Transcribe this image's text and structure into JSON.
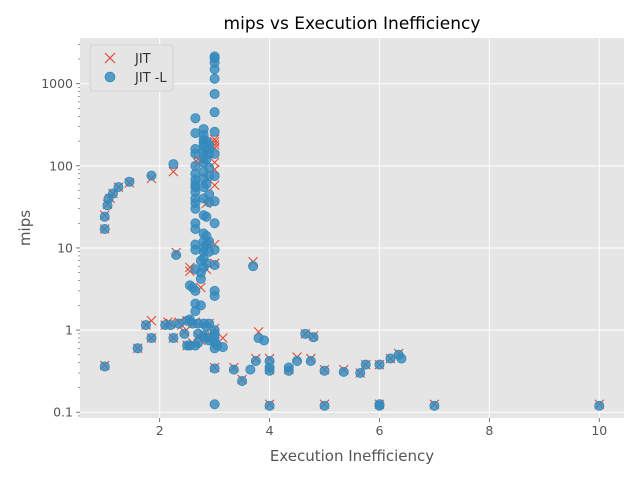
{
  "chart_data": {
    "type": "scatter",
    "title": "mips vs Execution Inefficiency",
    "xlabel": "Execution Inefficiency",
    "ylabel": "mips",
    "xscale": "linear",
    "yscale": "log",
    "xlim": [
      0.55,
      10.45
    ],
    "ylim": [
      0.085,
      3600
    ],
    "x_ticks": [
      2,
      4,
      6,
      8,
      10
    ],
    "x_tick_labels": [
      "2",
      "4",
      "6",
      "8",
      "10"
    ],
    "y_ticks": [
      0.1,
      1,
      10,
      100,
      1000
    ],
    "y_tick_labels": [
      "0.1",
      "1",
      "10",
      "100",
      "1000"
    ],
    "grid": true,
    "legend_position": "top-left",
    "series": [
      {
        "name": "JIT",
        "marker": "x",
        "color": "#E24A33",
        "points": [
          [
            1.0,
            0.37
          ],
          [
            1.0,
            17
          ],
          [
            1.0,
            25
          ],
          [
            1.05,
            34
          ],
          [
            1.1,
            40
          ],
          [
            1.15,
            46
          ],
          [
            1.25,
            55
          ],
          [
            1.45,
            62
          ],
          [
            1.85,
            70
          ],
          [
            1.6,
            0.6
          ],
          [
            1.75,
            1.15
          ],
          [
            1.85,
            1.3
          ],
          [
            1.85,
            0.8
          ],
          [
            2.1,
            1.15
          ],
          [
            2.15,
            1.25
          ],
          [
            2.2,
            1.2
          ],
          [
            2.25,
            0.8
          ],
          [
            2.25,
            85
          ],
          [
            2.3,
            8.8
          ],
          [
            2.35,
            1.25
          ],
          [
            2.4,
            1.15
          ],
          [
            2.45,
            0.95
          ],
          [
            2.5,
            1.3
          ],
          [
            2.5,
            0.65
          ],
          [
            2.55,
            5.2
          ],
          [
            2.55,
            5.8
          ],
          [
            2.6,
            1.2
          ],
          [
            2.6,
            0.7
          ],
          [
            2.65,
            1.25
          ],
          [
            2.7,
            108
          ],
          [
            2.7,
            120
          ],
          [
            2.7,
            0.85
          ],
          [
            2.75,
            0.75
          ],
          [
            2.75,
            3.3
          ],
          [
            2.8,
            1.2
          ],
          [
            2.8,
            0.9
          ],
          [
            2.85,
            5.5
          ],
          [
            2.85,
            140
          ],
          [
            2.85,
            35
          ],
          [
            2.85,
            12
          ],
          [
            2.9,
            1.2
          ],
          [
            2.9,
            0.8
          ],
          [
            2.95,
            0.85
          ],
          [
            3.0,
            210
          ],
          [
            3.0,
            195
          ],
          [
            3.0,
            180
          ],
          [
            3.0,
            165
          ],
          [
            3.0,
            58
          ],
          [
            3.0,
            90
          ],
          [
            3.0,
            110
          ],
          [
            3.0,
            11
          ],
          [
            3.0,
            6.5
          ],
          [
            3.0,
            1.05
          ],
          [
            3.0,
            0.35
          ],
          [
            3.15,
            0.8
          ],
          [
            3.35,
            0.35
          ],
          [
            3.5,
            0.25
          ],
          [
            3.7,
            6.8
          ],
          [
            3.75,
            0.45
          ],
          [
            3.8,
            0.95
          ],
          [
            4.0,
            0.45
          ],
          [
            4.0,
            0.33
          ],
          [
            4.0,
            0.125
          ],
          [
            4.35,
            0.33
          ],
          [
            4.5,
            0.47
          ],
          [
            4.65,
            0.9
          ],
          [
            4.75,
            0.45
          ],
          [
            4.8,
            0.85
          ],
          [
            5.0,
            0.33
          ],
          [
            5.0,
            0.125
          ],
          [
            5.35,
            0.33
          ],
          [
            5.65,
            0.3
          ],
          [
            5.75,
            0.38
          ],
          [
            6.0,
            0.38
          ],
          [
            6.0,
            0.125
          ],
          [
            6.2,
            0.45
          ],
          [
            6.35,
            0.52
          ],
          [
            7.0,
            0.125
          ],
          [
            10.0,
            0.125
          ]
        ]
      },
      {
        "name": "JIT -L",
        "marker": "o",
        "color": "#348ABD",
        "points": [
          [
            1.0,
            0.36
          ],
          [
            1.0,
            17
          ],
          [
            1.0,
            24
          ],
          [
            1.05,
            33
          ],
          [
            1.07,
            40
          ],
          [
            1.15,
            46
          ],
          [
            1.25,
            55
          ],
          [
            1.45,
            64
          ],
          [
            1.85,
            76
          ],
          [
            1.6,
            0.6
          ],
          [
            1.75,
            1.15
          ],
          [
            1.85,
            0.8
          ],
          [
            2.1,
            1.15
          ],
          [
            2.2,
            1.15
          ],
          [
            2.25,
            0.8
          ],
          [
            2.25,
            105
          ],
          [
            2.3,
            8.2
          ],
          [
            2.35,
            1.2
          ],
          [
            2.45,
            0.9
          ],
          [
            2.5,
            1.3
          ],
          [
            2.5,
            0.65
          ],
          [
            2.55,
            3.5
          ],
          [
            2.55,
            1.35
          ],
          [
            2.55,
            0.65
          ],
          [
            2.6,
            1.2
          ],
          [
            2.6,
            3.3
          ],
          [
            2.65,
            0.65
          ],
          [
            2.65,
            1.7
          ],
          [
            2.65,
            2.1
          ],
          [
            2.65,
            3.0
          ],
          [
            2.65,
            5.5
          ],
          [
            2.65,
            9.5
          ],
          [
            2.65,
            11
          ],
          [
            2.65,
            17
          ],
          [
            2.65,
            20
          ],
          [
            2.65,
            30
          ],
          [
            2.65,
            35
          ],
          [
            2.65,
            40
          ],
          [
            2.65,
            48
          ],
          [
            2.65,
            55
          ],
          [
            2.65,
            60
          ],
          [
            2.65,
            68
          ],
          [
            2.65,
            80
          ],
          [
            2.65,
            100
          ],
          [
            2.65,
            140
          ],
          [
            2.65,
            160
          ],
          [
            2.65,
            250
          ],
          [
            2.65,
            380
          ],
          [
            2.7,
            0.7
          ],
          [
            2.7,
            0.9
          ],
          [
            2.7,
            1.2
          ],
          [
            2.75,
            2.0
          ],
          [
            2.75,
            4.2
          ],
          [
            2.75,
            5.0
          ],
          [
            2.75,
            7.0
          ],
          [
            2.8,
            0.85
          ],
          [
            2.8,
            1.2
          ],
          [
            2.8,
            5.8
          ],
          [
            2.8,
            7.5
          ],
          [
            2.8,
            9
          ],
          [
            2.8,
            10
          ],
          [
            2.8,
            12
          ],
          [
            2.8,
            15
          ],
          [
            2.8,
            25
          ],
          [
            2.8,
            40
          ],
          [
            2.8,
            55
          ],
          [
            2.8,
            70
          ],
          [
            2.8,
            85
          ],
          [
            2.8,
            110
          ],
          [
            2.8,
            130
          ],
          [
            2.8,
            150
          ],
          [
            2.8,
            170
          ],
          [
            2.8,
            190
          ],
          [
            2.8,
            210
          ],
          [
            2.8,
            240
          ],
          [
            2.8,
            280
          ],
          [
            2.85,
            0.8
          ],
          [
            2.85,
            1.1
          ],
          [
            2.85,
            6.5
          ],
          [
            2.85,
            11
          ],
          [
            2.85,
            14
          ],
          [
            2.85,
            24
          ],
          [
            2.85,
            60
          ],
          [
            2.85,
            120
          ],
          [
            2.85,
            200
          ],
          [
            2.9,
            0.75
          ],
          [
            2.9,
            1.2
          ],
          [
            2.9,
            9
          ],
          [
            2.9,
            12
          ],
          [
            2.9,
            36
          ],
          [
            2.9,
            45
          ],
          [
            2.9,
            75
          ],
          [
            2.9,
            95
          ],
          [
            2.9,
            140
          ],
          [
            2.9,
            160
          ],
          [
            2.9,
            180
          ],
          [
            3.0,
            0.125
          ],
          [
            3.0,
            0.34
          ],
          [
            3.0,
            0.6
          ],
          [
            3.0,
            0.7
          ],
          [
            3.0,
            0.8
          ],
          [
            3.0,
            0.9
          ],
          [
            3.0,
            1.0
          ],
          [
            3.0,
            2.6
          ],
          [
            3.0,
            3.0
          ],
          [
            3.0,
            6.2
          ],
          [
            3.0,
            9.5
          ],
          [
            3.0,
            20
          ],
          [
            3.0,
            37
          ],
          [
            3.0,
            75
          ],
          [
            3.0,
            140
          ],
          [
            3.0,
            260
          ],
          [
            3.0,
            450
          ],
          [
            3.0,
            750
          ],
          [
            3.0,
            1150
          ],
          [
            3.0,
            1500
          ],
          [
            3.0,
            1800
          ],
          [
            3.0,
            2050
          ],
          [
            3.0,
            2150
          ],
          [
            3.05,
            0.65
          ],
          [
            3.15,
            0.62
          ],
          [
            3.35,
            0.33
          ],
          [
            3.5,
            0.24
          ],
          [
            3.65,
            0.33
          ],
          [
            3.7,
            6.0
          ],
          [
            3.75,
            0.42
          ],
          [
            3.8,
            0.8
          ],
          [
            3.9,
            0.75
          ],
          [
            4.0,
            0.12
          ],
          [
            4.0,
            0.32
          ],
          [
            4.0,
            0.35
          ],
          [
            4.0,
            0.42
          ],
          [
            4.35,
            0.32
          ],
          [
            4.35,
            0.35
          ],
          [
            4.5,
            0.42
          ],
          [
            4.65,
            0.9
          ],
          [
            4.75,
            0.42
          ],
          [
            4.8,
            0.82
          ],
          [
            5.0,
            0.12
          ],
          [
            5.0,
            0.32
          ],
          [
            5.35,
            0.31
          ],
          [
            5.65,
            0.3
          ],
          [
            5.75,
            0.38
          ],
          [
            6.0,
            0.12
          ],
          [
            6.0,
            0.125
          ],
          [
            6.0,
            0.38
          ],
          [
            6.2,
            0.45
          ],
          [
            6.35,
            0.5
          ],
          [
            6.4,
            0.45
          ],
          [
            7.0,
            0.12
          ],
          [
            10.0,
            0.12
          ]
        ]
      }
    ]
  }
}
